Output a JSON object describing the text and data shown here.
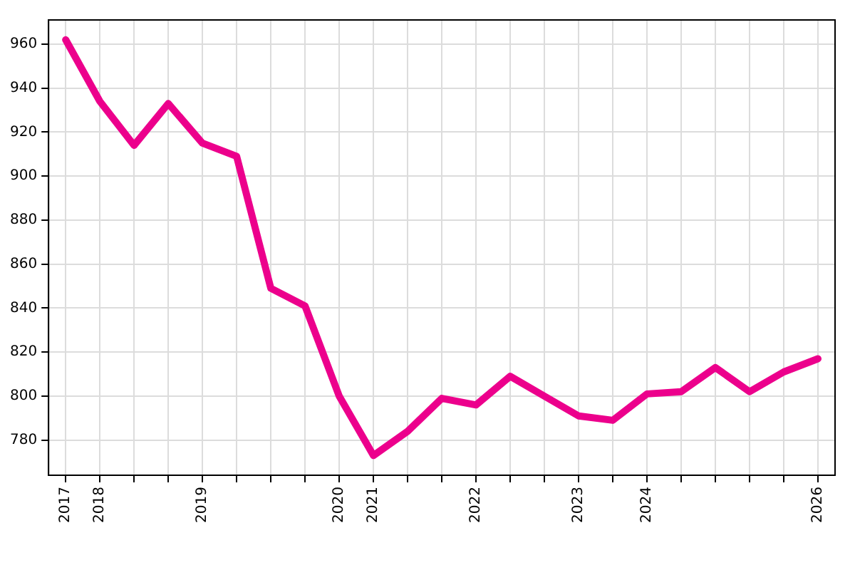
{
  "chart_data": {
    "type": "line",
    "categories": [
      "2017",
      "2018",
      null,
      null,
      "2019",
      null,
      null,
      null,
      "2020",
      "2021",
      null,
      null,
      "2022",
      null,
      null,
      "2023",
      null,
      "2024",
      null,
      null,
      null,
      null,
      "2026"
    ],
    "series": [
      {
        "color": "#ec008c",
        "values": [
          962,
          934,
          914,
          933,
          915,
          909,
          849,
          841,
          800,
          773,
          784,
          799,
          796,
          809,
          800,
          791,
          789,
          801,
          802,
          813,
          802,
          811,
          817
        ]
      }
    ],
    "ylim": [
      764,
      971
    ],
    "yticks": [
      780,
      800,
      820,
      840,
      860,
      880,
      900,
      920,
      940,
      960
    ],
    "grid": true,
    "legend": false,
    "marker": "none",
    "line_style": "solid"
  }
}
